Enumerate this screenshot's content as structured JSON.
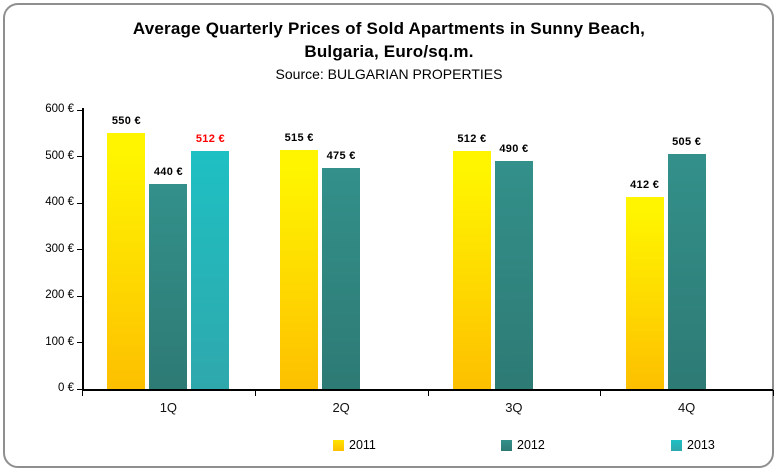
{
  "title": {
    "line1": "Average Quarterly Prices of Sold Apartments in Sunny Beach,",
    "line2": "Bulgaria, Euro/sq.m.",
    "source": "Source: BULGARIAN PROPERTIES"
  },
  "chart_data": {
    "type": "bar",
    "title": "Average Quarterly Prices of Sold Apartments in Sunny Beach, Bulgaria, Euro/sq.m.",
    "subtitle": "Source: BULGARIAN PROPERTIES",
    "categories": [
      "1Q",
      "2Q",
      "3Q",
      "4Q"
    ],
    "series": [
      {
        "name": "2011",
        "values": [
          550,
          515,
          512,
          412
        ],
        "value_labels": [
          "550 €",
          "515 €",
          "512 €",
          "412 €"
        ],
        "label_colors": [
          "#000000",
          "#000000",
          "#000000",
          "#000000"
        ],
        "color_top": "#fff500",
        "color_bottom": "#fdbf00"
      },
      {
        "name": "2012",
        "values": [
          440,
          475,
          490,
          505
        ],
        "value_labels": [
          "440 €",
          "475 €",
          "490 €",
          "505 €"
        ],
        "label_colors": [
          "#000000",
          "#000000",
          "#000000",
          "#000000"
        ],
        "color_top": "#33908a",
        "color_bottom": "#2e7a75"
      },
      {
        "name": "2013",
        "values": [
          512,
          null,
          null,
          null
        ],
        "value_labels": [
          "512 €",
          null,
          null,
          null
        ],
        "label_colors": [
          "#ff0000",
          null,
          null,
          null
        ],
        "color_top": "#1ec0c3",
        "color_bottom": "#2fa8ac"
      }
    ],
    "value_suffix": " €",
    "xlabel": "",
    "ylabel": "",
    "ylim": [
      0,
      600
    ],
    "ytick_step": 100,
    "ytick_labels": [
      "0 €",
      "100 €",
      "200 €",
      "300 €",
      "400 €",
      "500 €",
      "600 €"
    ],
    "grid": false,
    "legend_position": "bottom",
    "legend_entries": [
      "2011",
      "2012",
      "2013"
    ]
  }
}
